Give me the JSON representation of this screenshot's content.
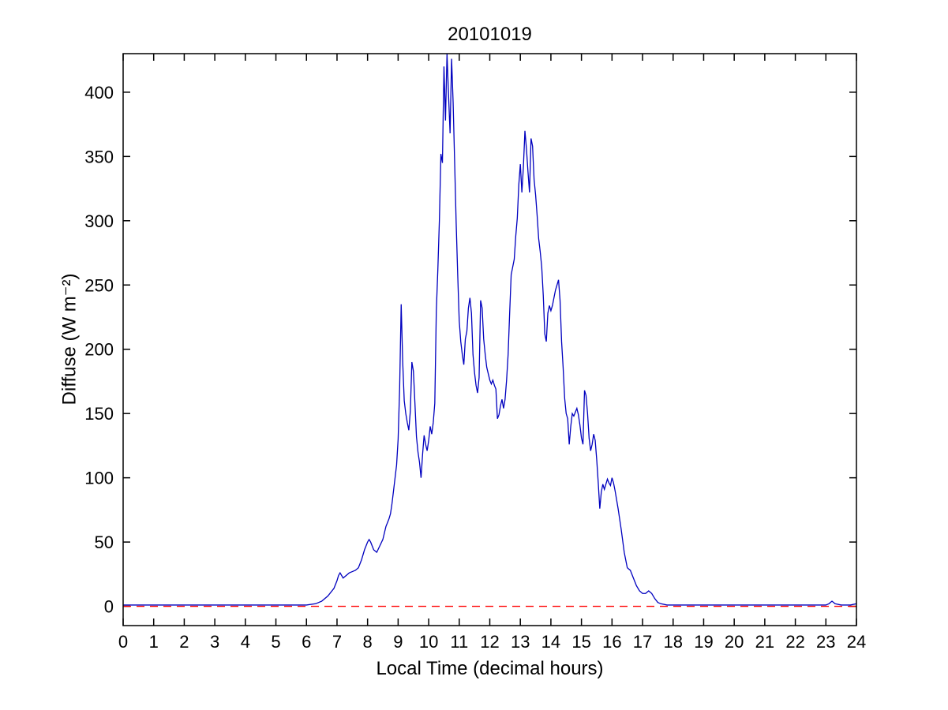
{
  "chart_data": {
    "type": "line",
    "title": "20101019",
    "xlabel": "Local Time (decimal hours)",
    "ylabel": "Diffuse (W m⁻²)",
    "xlim": [
      0,
      24
    ],
    "ylim": [
      -15,
      430
    ],
    "xticks": [
      0,
      1,
      2,
      3,
      4,
      5,
      6,
      7,
      8,
      9,
      10,
      11,
      12,
      13,
      14,
      15,
      16,
      17,
      18,
      19,
      20,
      21,
      22,
      23,
      24
    ],
    "yticks": [
      0,
      50,
      100,
      150,
      200,
      250,
      300,
      350,
      400
    ],
    "grid": false,
    "legend": null,
    "box_color": "#000000",
    "series": [
      {
        "name": "diffuse-irradiance",
        "color": "#0000bf",
        "style": "solid",
        "points": [
          [
            0,
            1
          ],
          [
            0.5,
            1
          ],
          [
            1,
            1
          ],
          [
            1.5,
            1
          ],
          [
            2,
            1
          ],
          [
            2.5,
            1
          ],
          [
            3,
            1
          ],
          [
            3.5,
            1
          ],
          [
            4,
            1
          ],
          [
            4.5,
            1
          ],
          [
            5,
            1
          ],
          [
            5.5,
            1
          ],
          [
            6,
            1
          ],
          [
            6.3,
            2
          ],
          [
            6.5,
            4
          ],
          [
            6.7,
            8
          ],
          [
            6.9,
            14
          ],
          [
            7.0,
            20
          ],
          [
            7.05,
            24
          ],
          [
            7.1,
            26
          ],
          [
            7.2,
            22
          ],
          [
            7.3,
            24
          ],
          [
            7.4,
            26
          ],
          [
            7.5,
            27
          ],
          [
            7.6,
            28
          ],
          [
            7.7,
            30
          ],
          [
            7.8,
            36
          ],
          [
            7.9,
            44
          ],
          [
            8.0,
            50
          ],
          [
            8.05,
            52
          ],
          [
            8.1,
            50
          ],
          [
            8.2,
            44
          ],
          [
            8.3,
            42
          ],
          [
            8.4,
            47
          ],
          [
            8.5,
            52
          ],
          [
            8.6,
            62
          ],
          [
            8.7,
            68
          ],
          [
            8.75,
            72
          ],
          [
            8.8,
            80
          ],
          [
            8.85,
            90
          ],
          [
            8.9,
            100
          ],
          [
            8.95,
            110
          ],
          [
            9.0,
            130
          ],
          [
            9.05,
            170
          ],
          [
            9.1,
            235
          ],
          [
            9.15,
            190
          ],
          [
            9.2,
            160
          ],
          [
            9.25,
            150
          ],
          [
            9.3,
            143
          ],
          [
            9.35,
            137
          ],
          [
            9.4,
            152
          ],
          [
            9.45,
            190
          ],
          [
            9.5,
            183
          ],
          [
            9.55,
            158
          ],
          [
            9.6,
            132
          ],
          [
            9.65,
            120
          ],
          [
            9.7,
            112
          ],
          [
            9.75,
            100
          ],
          [
            9.8,
            118
          ],
          [
            9.85,
            133
          ],
          [
            9.9,
            126
          ],
          [
            9.95,
            121
          ],
          [
            10.0,
            129
          ],
          [
            10.05,
            140
          ],
          [
            10.1,
            134
          ],
          [
            10.15,
            143
          ],
          [
            10.2,
            158
          ],
          [
            10.25,
            230
          ],
          [
            10.3,
            262
          ],
          [
            10.35,
            300
          ],
          [
            10.4,
            352
          ],
          [
            10.45,
            345
          ],
          [
            10.5,
            420
          ],
          [
            10.55,
            378
          ],
          [
            10.6,
            430
          ],
          [
            10.65,
            398
          ],
          [
            10.7,
            368
          ],
          [
            10.75,
            426
          ],
          [
            10.8,
            392
          ],
          [
            10.85,
            345
          ],
          [
            10.9,
            298
          ],
          [
            10.95,
            258
          ],
          [
            11.0,
            222
          ],
          [
            11.05,
            206
          ],
          [
            11.1,
            196
          ],
          [
            11.15,
            188
          ],
          [
            11.2,
            208
          ],
          [
            11.25,
            214
          ],
          [
            11.3,
            232
          ],
          [
            11.35,
            240
          ],
          [
            11.4,
            228
          ],
          [
            11.45,
            196
          ],
          [
            11.5,
            182
          ],
          [
            11.55,
            172
          ],
          [
            11.6,
            166
          ],
          [
            11.65,
            178
          ],
          [
            11.7,
            238
          ],
          [
            11.75,
            232
          ],
          [
            11.8,
            208
          ],
          [
            11.85,
            196
          ],
          [
            11.9,
            186
          ],
          [
            11.95,
            181
          ],
          [
            12.0,
            176
          ],
          [
            12.05,
            173
          ],
          [
            12.1,
            176
          ],
          [
            12.15,
            172
          ],
          [
            12.2,
            169
          ],
          [
            12.25,
            146
          ],
          [
            12.3,
            149
          ],
          [
            12.35,
            156
          ],
          [
            12.4,
            161
          ],
          [
            12.45,
            154
          ],
          [
            12.5,
            161
          ],
          [
            12.55,
            176
          ],
          [
            12.6,
            196
          ],
          [
            12.65,
            228
          ],
          [
            12.7,
            258
          ],
          [
            12.75,
            264
          ],
          [
            12.8,
            270
          ],
          [
            12.85,
            288
          ],
          [
            12.9,
            302
          ],
          [
            12.95,
            328
          ],
          [
            13.0,
            344
          ],
          [
            13.05,
            322
          ],
          [
            13.1,
            342
          ],
          [
            13.15,
            370
          ],
          [
            13.2,
            356
          ],
          [
            13.25,
            338
          ],
          [
            13.3,
            322
          ],
          [
            13.35,
            364
          ],
          [
            13.4,
            358
          ],
          [
            13.45,
            332
          ],
          [
            13.5,
            320
          ],
          [
            13.55,
            304
          ],
          [
            13.6,
            286
          ],
          [
            13.65,
            276
          ],
          [
            13.7,
            264
          ],
          [
            13.75,
            242
          ],
          [
            13.8,
            212
          ],
          [
            13.85,
            206
          ],
          [
            13.9,
            228
          ],
          [
            13.95,
            234
          ],
          [
            14.0,
            230
          ],
          [
            14.05,
            234
          ],
          [
            14.1,
            240
          ],
          [
            14.15,
            246
          ],
          [
            14.2,
            250
          ],
          [
            14.25,
            254
          ],
          [
            14.3,
            238
          ],
          [
            14.35,
            206
          ],
          [
            14.4,
            186
          ],
          [
            14.45,
            162
          ],
          [
            14.5,
            150
          ],
          [
            14.55,
            146
          ],
          [
            14.6,
            126
          ],
          [
            14.65,
            140
          ],
          [
            14.7,
            150
          ],
          [
            14.75,
            148
          ],
          [
            14.8,
            151
          ],
          [
            14.85,
            154
          ],
          [
            14.9,
            149
          ],
          [
            14.95,
            141
          ],
          [
            15.0,
            131
          ],
          [
            15.05,
            126
          ],
          [
            15.1,
            168
          ],
          [
            15.15,
            164
          ],
          [
            15.2,
            150
          ],
          [
            15.25,
            131
          ],
          [
            15.3,
            121
          ],
          [
            15.35,
            126
          ],
          [
            15.4,
            134
          ],
          [
            15.45,
            129
          ],
          [
            15.5,
            114
          ],
          [
            15.55,
            96
          ],
          [
            15.6,
            76
          ],
          [
            15.65,
            89
          ],
          [
            15.7,
            95
          ],
          [
            15.75,
            91
          ],
          [
            15.8,
            95
          ],
          [
            15.85,
            99
          ],
          [
            15.9,
            96
          ],
          [
            15.95,
            94
          ],
          [
            16.0,
            100
          ],
          [
            16.05,
            96
          ],
          [
            16.1,
            90
          ],
          [
            16.2,
            76
          ],
          [
            16.3,
            60
          ],
          [
            16.4,
            42
          ],
          [
            16.5,
            30
          ],
          [
            16.6,
            28
          ],
          [
            16.7,
            22
          ],
          [
            16.8,
            16
          ],
          [
            16.9,
            12
          ],
          [
            17.0,
            10
          ],
          [
            17.1,
            10
          ],
          [
            17.2,
            12
          ],
          [
            17.3,
            10
          ],
          [
            17.4,
            6
          ],
          [
            17.5,
            3
          ],
          [
            17.6,
            2
          ],
          [
            17.8,
            1
          ],
          [
            18.0,
            1
          ],
          [
            18.5,
            1
          ],
          [
            19,
            1
          ],
          [
            19.5,
            1
          ],
          [
            20,
            1
          ],
          [
            20.5,
            1
          ],
          [
            21,
            1
          ],
          [
            21.5,
            1
          ],
          [
            22,
            1
          ],
          [
            22.5,
            1
          ],
          [
            23,
            1
          ],
          [
            23.1,
            2
          ],
          [
            23.2,
            4
          ],
          [
            23.3,
            2
          ],
          [
            23.5,
            1
          ],
          [
            23.8,
            1
          ],
          [
            24,
            2
          ]
        ]
      },
      {
        "name": "zero-reference",
        "color": "#ff0000",
        "style": "dashed",
        "points": [
          [
            0,
            0
          ],
          [
            24,
            0
          ]
        ]
      }
    ]
  }
}
